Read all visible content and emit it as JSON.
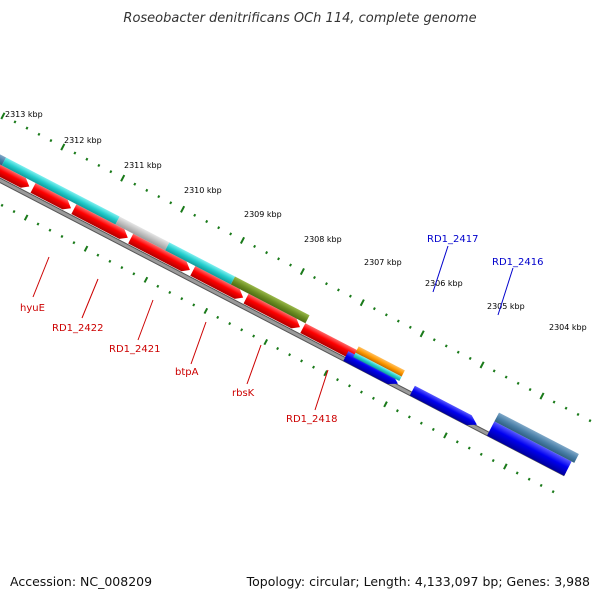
{
  "title": "Roseobacter denitrificans OCh 114, complete genome",
  "footer": {
    "accession": "Accession: NC_008209",
    "summary": "Topology: circular; Length: 4,133,097 bp; Genes: 3,988"
  },
  "ruler": {
    "labels": [
      "2313 kbp",
      "2312 kbp",
      "2311 kbp",
      "2310 kbp",
      "2309 kbp",
      "2308 kbp",
      "2307 kbp",
      "2306 kbp",
      "2305 kbp",
      "2304 kbp"
    ]
  },
  "gene_labels": {
    "negative": [
      "hyuE",
      "RD1_2422",
      "RD1_2421",
      "btpA",
      "rbsK",
      "RD1_2418"
    ],
    "positive": [
      "RD1_2417",
      "RD1_2416"
    ]
  },
  "colors": {
    "negative_label": "#cc0000",
    "positive_label": "#0000cc",
    "forward_cds": "#ff0000",
    "reverse_cds": "#0000ee",
    "tick": "#1a7a1a",
    "backbone": "#808080"
  }
}
